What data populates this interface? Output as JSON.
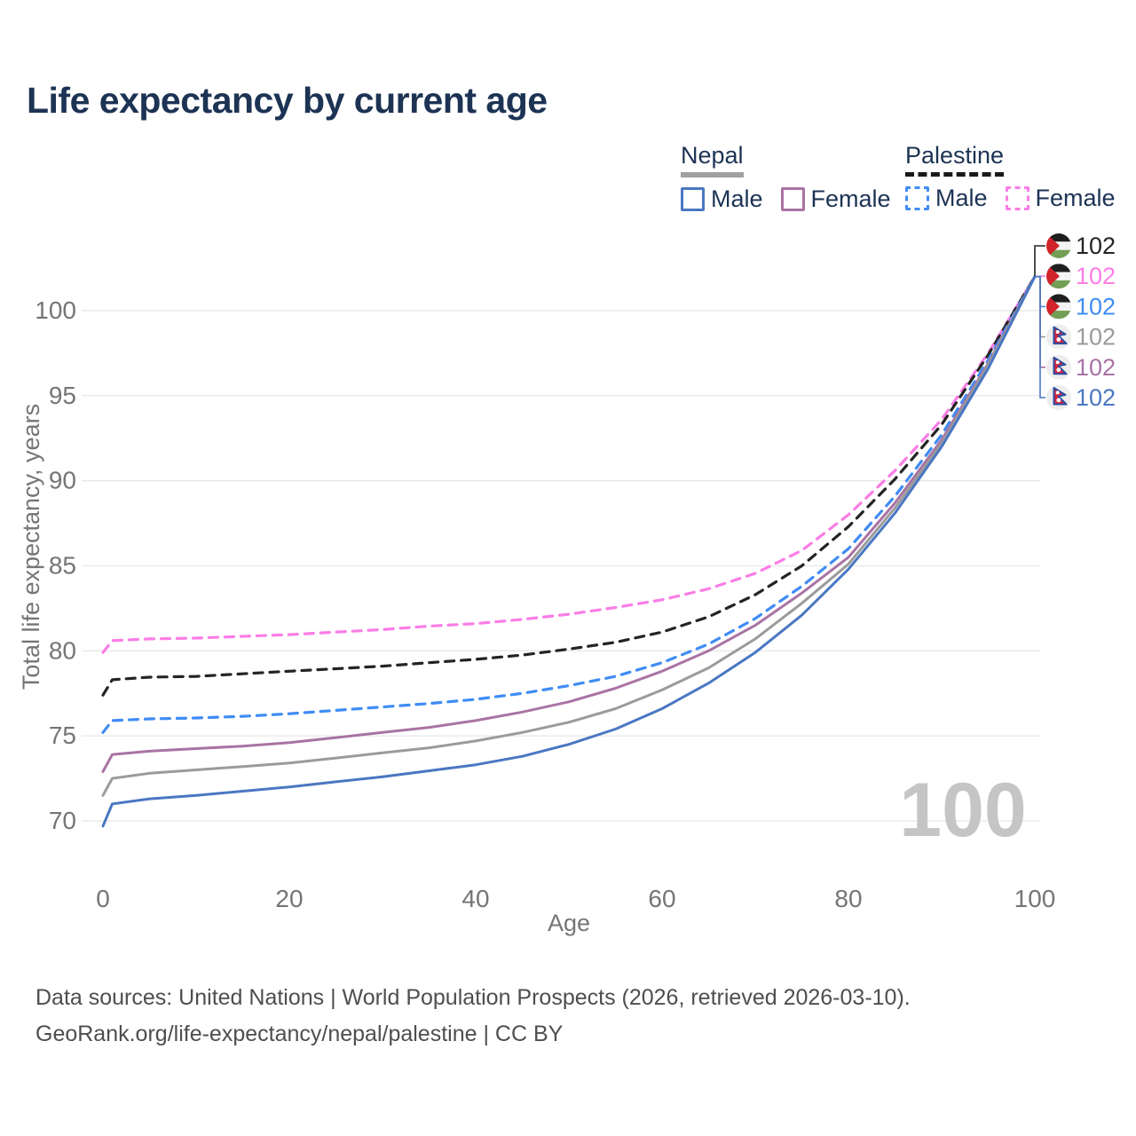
{
  "page": {
    "title": "Life expectancy by current age",
    "footer_line1": "Data sources: United Nations | World Population Prospects (2026, retrieved 2026-03-10).",
    "footer_line2": "GeoRank.org/life-expectancy/nepal/palestine | CC BY"
  },
  "legend": {
    "groups": [
      {
        "label": "Nepal",
        "line_style": "solid",
        "underline_color": "#a0a0a0",
        "items": [
          {
            "label": "Male",
            "color": "#4a77c2",
            "dashed": false
          },
          {
            "label": "Female",
            "color": "#a973a4",
            "dashed": false
          }
        ]
      },
      {
        "label": "Palestine",
        "line_style": "dashed",
        "underline_color": "#1a1a1a",
        "items": [
          {
            "label": "Male",
            "color": "#3f8cf4",
            "dashed": true
          },
          {
            "label": "Female",
            "color": "#fb7de6",
            "dashed": true
          }
        ]
      }
    ]
  },
  "chart_data": {
    "type": "line",
    "title": "Life expectancy by current age",
    "xlabel": "Age",
    "ylabel": "Total life expectancy, years",
    "x_ticks": [
      0,
      20,
      40,
      60,
      80,
      100
    ],
    "y_ticks": [
      70,
      75,
      80,
      85,
      90,
      95,
      100
    ],
    "xlim": [
      0,
      100
    ],
    "ylim": [
      69,
      103.5
    ],
    "grid": "horizontal-only",
    "legend_position": "top-right",
    "age_watermark": "100",
    "tick_color": "#757575",
    "grid_color": "#e8e8e8",
    "watermark_color": "#c5c5c5",
    "ages": [
      0,
      1,
      5,
      10,
      15,
      20,
      25,
      30,
      35,
      40,
      45,
      50,
      55,
      60,
      65,
      70,
      75,
      80,
      85,
      90,
      95,
      100
    ],
    "series": [
      {
        "name": "Palestine Female",
        "country": "Palestine",
        "sex": "Female",
        "color": "#fb7de6",
        "dashed": true,
        "values": [
          79.9,
          80.6,
          80.7,
          80.75,
          80.85,
          80.95,
          81.1,
          81.25,
          81.45,
          81.6,
          81.85,
          82.15,
          82.55,
          83.0,
          83.65,
          84.55,
          85.9,
          88.0,
          90.6,
          93.6,
          97.5,
          102
        ]
      },
      {
        "name": "Palestine Both sexes",
        "country": "Palestine",
        "sex": "Both",
        "color": "#242424",
        "dashed": true,
        "values": [
          77.4,
          78.3,
          78.45,
          78.5,
          78.65,
          78.8,
          78.95,
          79.1,
          79.3,
          79.5,
          79.75,
          80.1,
          80.5,
          81.1,
          82.0,
          83.3,
          85.0,
          87.3,
          90.1,
          93.3,
          97.4,
          102
        ]
      },
      {
        "name": "Palestine Male",
        "country": "Palestine",
        "sex": "Male",
        "color": "#3f8cf4",
        "dashed": true,
        "values": [
          75.2,
          75.9,
          76.0,
          76.05,
          76.15,
          76.3,
          76.5,
          76.7,
          76.9,
          77.15,
          77.5,
          77.95,
          78.5,
          79.3,
          80.4,
          81.9,
          83.8,
          86.0,
          89.1,
          92.7,
          97.1,
          102
        ]
      },
      {
        "name": "Nepal Female",
        "country": "Nepal",
        "sex": "Female",
        "color": "#a973a4",
        "dashed": false,
        "values": [
          72.9,
          73.9,
          74.1,
          74.25,
          74.4,
          74.6,
          74.9,
          75.2,
          75.5,
          75.9,
          76.4,
          77.0,
          77.8,
          78.8,
          80.0,
          81.5,
          83.4,
          85.5,
          88.7,
          92.4,
          96.9,
          102
        ]
      },
      {
        "name": "Nepal Both sexes",
        "country": "Nepal",
        "sex": "Both",
        "color": "#9b9b9b",
        "dashed": false,
        "values": [
          71.5,
          72.5,
          72.8,
          73.0,
          73.2,
          73.4,
          73.7,
          74.0,
          74.3,
          74.7,
          75.2,
          75.8,
          76.6,
          77.7,
          79.0,
          80.7,
          82.8,
          85.1,
          88.4,
          92.2,
          96.8,
          102
        ]
      },
      {
        "name": "Nepal Male",
        "country": "Nepal",
        "sex": "Male",
        "color": "#4a77c2",
        "dashed": false,
        "values": [
          69.7,
          71.0,
          71.3,
          71.5,
          71.75,
          72.0,
          72.3,
          72.6,
          72.95,
          73.3,
          73.8,
          74.5,
          75.4,
          76.6,
          78.1,
          79.9,
          82.1,
          84.8,
          88.1,
          92.0,
          96.6,
          102
        ]
      }
    ],
    "end_labels": [
      {
        "flag": "palestine",
        "series": "Palestine Both sexes",
        "color": "#242424",
        "value": "102"
      },
      {
        "flag": "palestine",
        "series": "Palestine Female",
        "color": "#fb7de6",
        "value": "102"
      },
      {
        "flag": "palestine",
        "series": "Palestine Male",
        "color": "#3f8cf4",
        "value": "102"
      },
      {
        "flag": "nepal",
        "series": "Nepal Both sexes",
        "color": "#9b9b9b",
        "value": "102"
      },
      {
        "flag": "nepal",
        "series": "Nepal Female",
        "color": "#a973a4",
        "value": "102"
      },
      {
        "flag": "nepal",
        "series": "Nepal Male",
        "color": "#4a77c2",
        "value": "102"
      }
    ]
  }
}
